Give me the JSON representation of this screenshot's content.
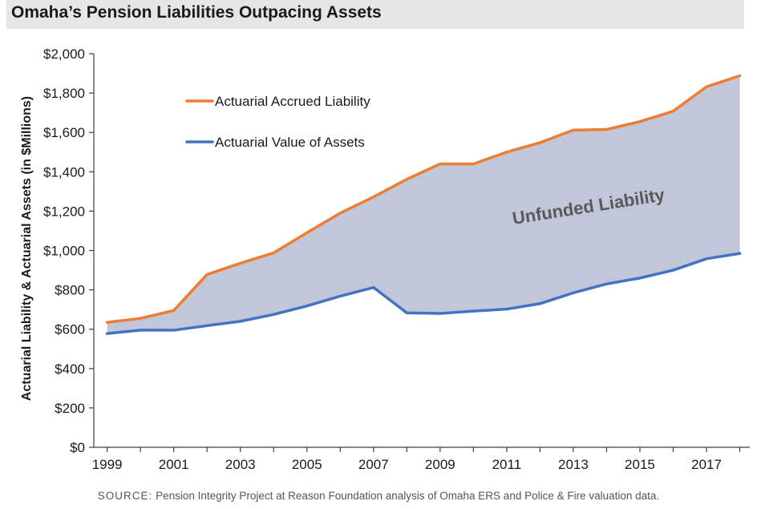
{
  "title": "Omaha’s Pension Liabilities Outpacing Assets",
  "source": {
    "label": "SOURCE:",
    "text": "Pension Integrity Project at Reason Foundation analysis of Omaha ERS and Police & Fire valuation data."
  },
  "chart_data": {
    "type": "area",
    "ylabel": "Actuarial Liability & Actuarial Assets (in $Millions)",
    "xlabel": "",
    "ylim": [
      0,
      2000
    ],
    "xlim": [
      1998.6,
      2018.3
    ],
    "y_ticks": [
      0,
      200,
      400,
      600,
      800,
      1000,
      1200,
      1400,
      1600,
      1800,
      2000
    ],
    "y_tick_labels": [
      "$0",
      "$200",
      "$400",
      "$600",
      "$800",
      "$1,000",
      "$1,200",
      "$1,400",
      "$1,600",
      "$1,800",
      "$2,000"
    ],
    "x_tick_labels": [
      "1999",
      "2001",
      "2003",
      "2005",
      "2007",
      "2009",
      "2011",
      "2013",
      "2015",
      "2017"
    ],
    "x_tick_values": [
      1999,
      2001,
      2003,
      2005,
      2007,
      2009,
      2011,
      2013,
      2015,
      2017
    ],
    "x": [
      1999,
      2000,
      2001,
      2002,
      2003,
      2004,
      2005,
      2006,
      2007,
      2008,
      2009,
      2010,
      2011,
      2012,
      2013,
      2014,
      2015,
      2016,
      2017,
      2018
    ],
    "series": [
      {
        "name": "Actuarial Accrued Liability",
        "color": "#ed7d31",
        "values": [
          635,
          655,
          695,
          878,
          935,
          988,
          1090,
          1190,
          1272,
          1362,
          1440,
          1440,
          1500,
          1548,
          1612,
          1615,
          1655,
          1708,
          1832,
          1888
        ]
      },
      {
        "name": "Actuarial Value of Assets",
        "color": "#4472c4",
        "values": [
          578,
          595,
          595,
          618,
          640,
          675,
          718,
          768,
          812,
          683,
          680,
          692,
          702,
          730,
          785,
          830,
          860,
          900,
          958,
          985
        ]
      }
    ],
    "fill": {
      "between": [
        "Actuarial Accrued Liability",
        "Actuarial Value of Assets"
      ],
      "color": "#c0c7d9",
      "label": "Unfunded Liability"
    },
    "legend_position": "top-left",
    "grid": false
  }
}
